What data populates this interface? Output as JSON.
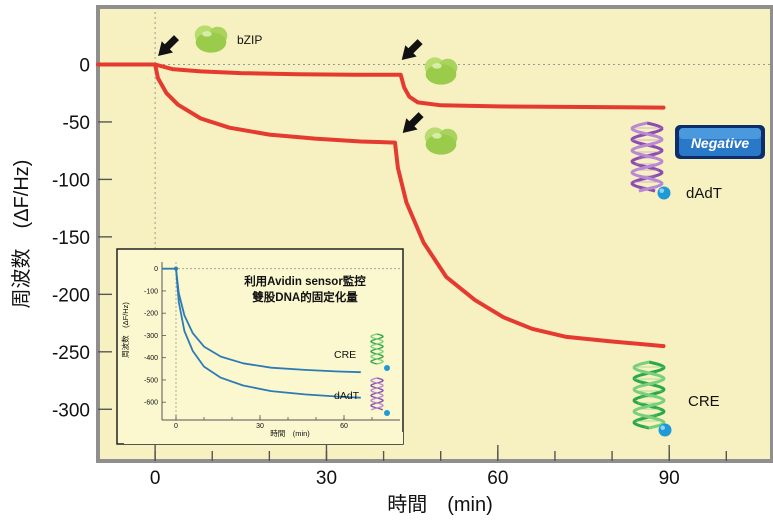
{
  "chart_data": [
    {
      "type": "line",
      "title": "",
      "xlabel": "時間　(min)",
      "ylabel": "周波数　(ΔF/Hz)",
      "xlim": [
        -10,
        108
      ],
      "ylim": [
        -345,
        50
      ],
      "x_ticks": [
        0,
        30,
        60,
        90
      ],
      "x_tick_labels": [
        "0",
        "30",
        "60",
        "90"
      ],
      "y_ticks": [
        0,
        -50,
        -100,
        -150,
        -200,
        -250,
        -300
      ],
      "y_tick_labels": [
        "0",
        "-50",
        "-100",
        "-150",
        "-200",
        "-250",
        "-300"
      ],
      "grid": false,
      "background": "#f7f1c2",
      "series": [
        {
          "name": "dAdT",
          "color": "#e53a2f",
          "points": [
            [
              -10,
              0
            ],
            [
              0,
              0
            ],
            [
              3,
              -4
            ],
            [
              8,
              -6
            ],
            [
              15,
              -7.5
            ],
            [
              25,
              -8.5
            ],
            [
              35,
              -9
            ],
            [
              43,
              -9
            ],
            [
              43.6,
              -20
            ],
            [
              44.5,
              -28
            ],
            [
              46,
              -33
            ],
            [
              50,
              -35.5
            ],
            [
              60,
              -36.5
            ],
            [
              75,
              -37
            ],
            [
              89,
              -37.5
            ]
          ]
        },
        {
          "name": "CRE",
          "color": "#e53a2f",
          "points": [
            [
              0,
              0
            ],
            [
              0.5,
              -12
            ],
            [
              2,
              -25
            ],
            [
              4,
              -35
            ],
            [
              8,
              -47
            ],
            [
              13,
              -55
            ],
            [
              20,
              -61
            ],
            [
              28,
              -64.5
            ],
            [
              36,
              -67
            ],
            [
              42,
              -68
            ],
            [
              42.5,
              -90
            ],
            [
              44,
              -120
            ],
            [
              47,
              -155
            ],
            [
              51,
              -185
            ],
            [
              56,
              -205
            ],
            [
              61,
              -220
            ],
            [
              66,
              -230
            ],
            [
              72,
              -237
            ],
            [
              80,
              -241
            ],
            [
              89,
              -245
            ]
          ]
        }
      ],
      "annotations": {
        "protein_label": "bZIP",
        "curve_labels": [
          "dAdT",
          "CRE"
        ],
        "badge": "Negative"
      }
    },
    {
      "type": "line",
      "title": "利用Avidin sensor監控\n雙股DNA的固定化量",
      "xlabel": "時間　(min)",
      "ylabel": "周波数　(ΔF/Hz)",
      "xlim": [
        -5,
        80
      ],
      "ylim": [
        -680,
        30
      ],
      "x_ticks": [
        0,
        30,
        60
      ],
      "x_tick_labels": [
        "0",
        "30",
        "60"
      ],
      "y_ticks": [
        0,
        -100,
        -200,
        -300,
        -400,
        -500,
        -600
      ],
      "y_tick_labels": [
        "0",
        "-100",
        "-200",
        "-300",
        "-400",
        "-500",
        "-600"
      ],
      "series": [
        {
          "name": "CRE",
          "color": "#2c7bb6",
          "points": [
            [
              -5,
              0
            ],
            [
              0,
              0
            ],
            [
              1,
              -110
            ],
            [
              3,
              -210
            ],
            [
              6,
              -290
            ],
            [
              10,
              -350
            ],
            [
              16,
              -395
            ],
            [
              24,
              -425
            ],
            [
              34,
              -445
            ],
            [
              46,
              -455
            ],
            [
              58,
              -462
            ],
            [
              66,
              -465
            ]
          ]
        },
        {
          "name": "dAdT",
          "color": "#2c7bb6",
          "points": [
            [
              0,
              0
            ],
            [
              1,
              -150
            ],
            [
              3,
              -280
            ],
            [
              6,
              -370
            ],
            [
              10,
              -440
            ],
            [
              16,
              -490
            ],
            [
              24,
              -525
            ],
            [
              34,
              -550
            ],
            [
              46,
              -565
            ],
            [
              58,
              -575
            ],
            [
              66,
              -580
            ]
          ]
        }
      ],
      "annotations": {
        "curve_labels": [
          "CRE",
          "dAdT"
        ]
      }
    }
  ]
}
